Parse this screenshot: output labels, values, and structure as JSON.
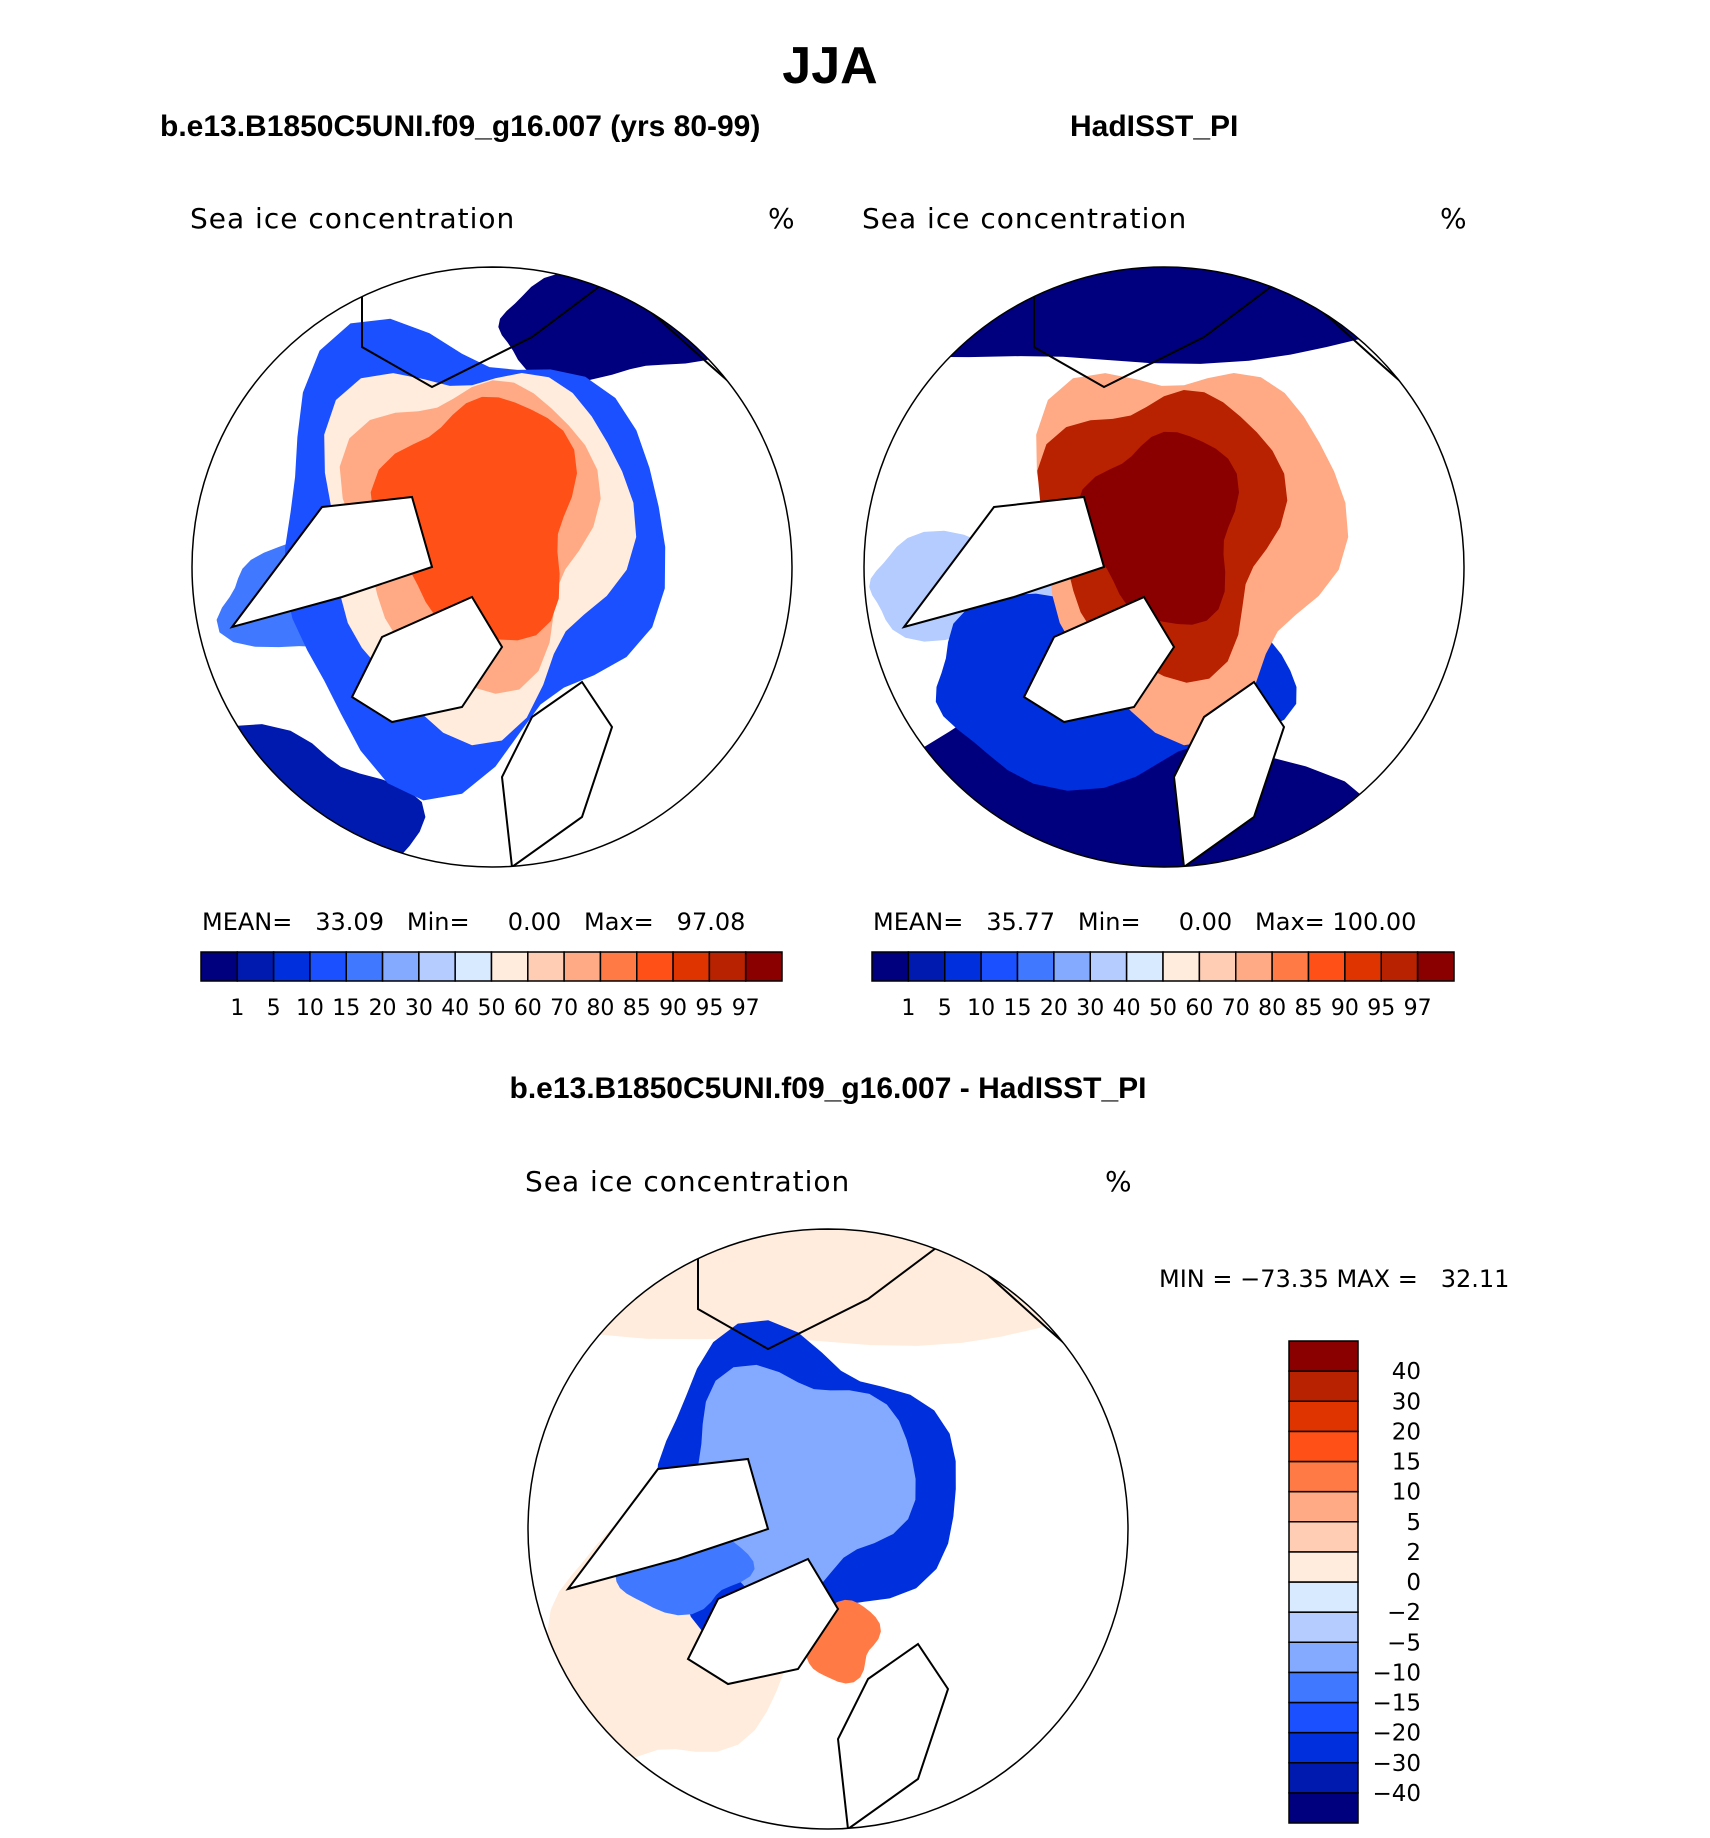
{
  "title": "JJA",
  "panels": [
    {
      "title": "b.e13.B1850C5UNI.f09_g16.007 (yrs 80-99)",
      "variable": "Sea ice concentration",
      "units": "%",
      "stats": {
        "mean_label": "MEAN=",
        "mean": "33.09",
        "min_label": "Min=",
        "min": "0.00",
        "max_label": "Max=",
        "max": "97.08"
      }
    },
    {
      "title": "HadISST_PI",
      "variable": "Sea ice concentration",
      "units": "%",
      "stats": {
        "mean_label": "MEAN=",
        "mean": "35.77",
        "min_label": "Min=",
        "min": "0.00",
        "max_label": "Max=",
        "max": "100.00"
      }
    },
    {
      "title": "b.e13.B1850C5UNI.f09_g16.007 - HadISST_PI",
      "variable": "Sea ice concentration",
      "units": "%",
      "stats": {
        "text": "MIN = −73.35 MAX =   32.11"
      }
    }
  ],
  "chart_data": [
    {
      "type": "heatmap",
      "projection": "north-polar-stereographic",
      "title": "b.e13.B1850C5UNI.f09_g16.007 (yrs 80-99)",
      "colorbar": {
        "orientation": "horizontal",
        "levels": [
          "1",
          "5",
          "10",
          "15",
          "20",
          "30",
          "40",
          "50",
          "60",
          "70",
          "80",
          "85",
          "90",
          "95",
          "97"
        ]
      }
    },
    {
      "type": "heatmap",
      "projection": "north-polar-stereographic",
      "title": "HadISST_PI",
      "colorbar": {
        "orientation": "horizontal",
        "levels": [
          "1",
          "5",
          "10",
          "15",
          "20",
          "30",
          "40",
          "50",
          "60",
          "70",
          "80",
          "85",
          "90",
          "95",
          "97"
        ]
      }
    },
    {
      "type": "heatmap",
      "projection": "north-polar-stereographic",
      "title": "b.e13.B1850C5UNI.f09_g16.007 - HadISST_PI",
      "colorbar": {
        "orientation": "vertical",
        "levels": [
          "−40",
          "−30",
          "−20",
          "−15",
          "−10",
          "−5",
          "−2",
          "0",
          "2",
          "5",
          "10",
          "15",
          "20",
          "30",
          "40"
        ]
      }
    }
  ],
  "colors": [
    "#00007f",
    "#001aaf",
    "#0030dd",
    "#1a50ff",
    "#4078ff",
    "#84aaff",
    "#b4ccff",
    "#d8eaff",
    "#ffecdc",
    "#ffccb4",
    "#ffaa84",
    "#ff7a44",
    "#ff5018",
    "#e03400",
    "#b82200",
    "#8a0000"
  ]
}
